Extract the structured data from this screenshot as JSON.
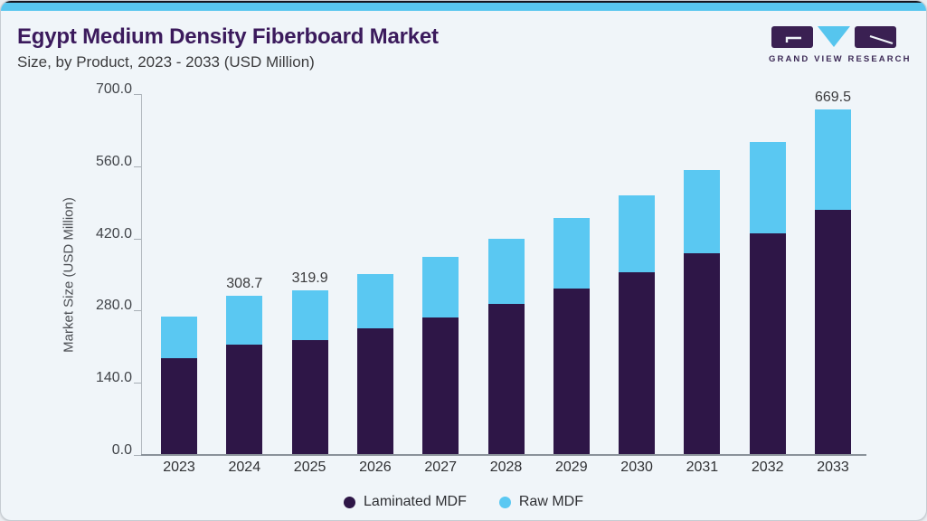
{
  "page": {
    "title": "Egypt Medium Density Fiberboard Market",
    "subtitle": "Size, by Product, 2023 - 2033 (USD Million)"
  },
  "logo": {
    "text": "GRAND VIEW RESEARCH",
    "mark_purple": "#3a2052",
    "mark_blue": "#56c5ee"
  },
  "chart_data": {
    "type": "bar",
    "stacked": true,
    "title": "Egypt Medium Density Fiberboard Market Size, by Product, 2023 - 2033 (USD Million)",
    "categories": [
      "2023",
      "2024",
      "2025",
      "2026",
      "2027",
      "2028",
      "2029",
      "2030",
      "2031",
      "2032",
      "2033"
    ],
    "series": [
      {
        "name": "Laminated MDF",
        "color": "#2e1647",
        "values": [
          187.0,
          214.3,
          223.2,
          245.0,
          267.4,
          293.1,
          322.5,
          354.2,
          391.2,
          429.5,
          474.8
        ]
      },
      {
        "name": "Raw MDF",
        "color": "#5ac8f2",
        "values": [
          82.2,
          94.4,
          96.7,
          105.9,
          116.4,
          126.1,
          136.6,
          149.9,
          161.9,
          178.3,
          194.7
        ]
      }
    ],
    "totals": [
      269.2,
      308.7,
      319.9,
      350.9,
      383.8,
      419.2,
      459.1,
      504.1,
      553.1,
      607.8,
      669.5
    ],
    "total_labels": [
      "",
      "308.7",
      "319.9",
      "",
      "",
      "",
      "",
      "",
      "",
      "",
      "669.5"
    ],
    "xlabel": "",
    "ylabel": "Market Size (USD Million)",
    "ylim": [
      0,
      700
    ],
    "yticks": [
      0,
      140,
      280,
      420,
      560,
      700
    ],
    "ytick_labels": [
      "0.0",
      "140.0",
      "280.0",
      "420.0",
      "560.0",
      "700.0"
    ],
    "grid": false,
    "legend_position": "bottom"
  }
}
